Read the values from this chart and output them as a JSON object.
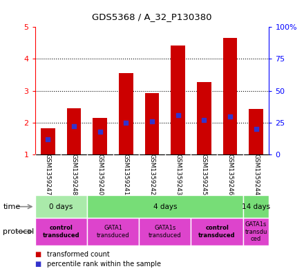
{
  "title": "GDS5368 / A_32_P130380",
  "samples": [
    "GSM1359247",
    "GSM1359248",
    "GSM1359240",
    "GSM1359241",
    "GSM1359242",
    "GSM1359243",
    "GSM1359245",
    "GSM1359246",
    "GSM1359244"
  ],
  "transformed_counts": [
    1.83,
    2.45,
    2.15,
    3.55,
    2.93,
    4.43,
    3.27,
    4.65,
    2.42
  ],
  "percentile_ranks": [
    0.12,
    0.22,
    0.18,
    0.25,
    0.26,
    0.31,
    0.27,
    0.3,
    0.2
  ],
  "ylim_left": [
    1,
    5
  ],
  "ylim_right": [
    0,
    100
  ],
  "yticks_left": [
    1,
    2,
    3,
    4,
    5
  ],
  "yticks_right": [
    0,
    25,
    50,
    75,
    100
  ],
  "ytick_right_labels": [
    "0",
    "25",
    "50",
    "75",
    "100%"
  ],
  "bar_color": "#cc0000",
  "dot_color": "#3333cc",
  "bar_width": 0.55,
  "time_spans": [
    {
      "label": "0 days",
      "start": 0,
      "end": 2,
      "color": "#aaeaaa"
    },
    {
      "label": "4 days",
      "start": 2,
      "end": 8,
      "color": "#77dd77"
    },
    {
      "label": "14 days",
      "start": 8,
      "end": 9,
      "color": "#77dd77"
    }
  ],
  "proto_spans": [
    {
      "label": "control\ntransduced",
      "start": 0,
      "end": 2,
      "bold": true
    },
    {
      "label": "GATA1\ntransduced",
      "start": 2,
      "end": 4,
      "bold": false
    },
    {
      "label": "GATA1s\ntransduced",
      "start": 4,
      "end": 6,
      "bold": false
    },
    {
      "label": "control\ntransduced",
      "start": 6,
      "end": 8,
      "bold": true
    },
    {
      "label": "GATA1s\ntransdu\nced",
      "start": 8,
      "end": 9,
      "bold": false
    }
  ],
  "proto_color": "#dd44cc",
  "legend_items": [
    {
      "color": "#cc0000",
      "label": "transformed count"
    },
    {
      "color": "#3333cc",
      "label": "percentile rank within the sample"
    }
  ],
  "bg_color": "#ffffff",
  "sample_bg": "#cccccc",
  "gridline_ticks": [
    2,
    3,
    4
  ]
}
